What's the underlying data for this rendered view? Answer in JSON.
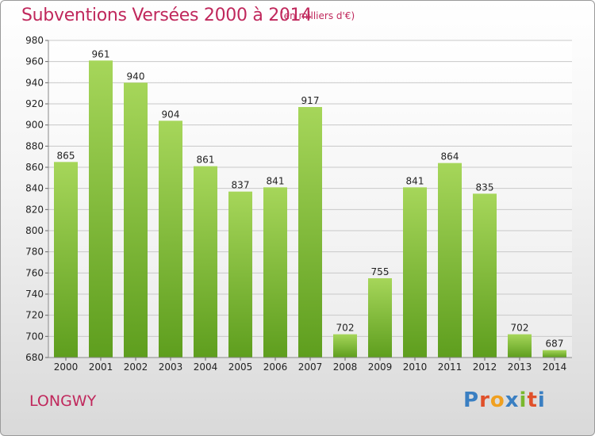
{
  "header": {
    "title": "Subventions Versées 2000 à 2014",
    "unit": "(en milliers d'€)"
  },
  "footer": {
    "city": "LONGWY",
    "logo_letters": [
      "P",
      "r",
      "o",
      "x",
      "i",
      "t",
      "i"
    ],
    "logo_colors": [
      "#3a7fc2",
      "#e0502a",
      "#f0a020",
      "#3a7fc2",
      "#7ab82e",
      "#e0502a",
      "#3a7fc2"
    ]
  },
  "colors": {
    "title": "#c0285c",
    "bar_top": "#a6d65a",
    "bar_bottom": "#5e9e1e",
    "grid": "#c8c8c8"
  },
  "chart_data": {
    "type": "bar",
    "title": "Subventions Versées 2000 à 2014",
    "subtitle": "(en milliers d'€)",
    "xlabel": "",
    "ylabel": "",
    "categories": [
      "2000",
      "2001",
      "2002",
      "2003",
      "2004",
      "2005",
      "2006",
      "2007",
      "2008",
      "2009",
      "2010",
      "2011",
      "2012",
      "2013",
      "2014"
    ],
    "values": [
      865,
      961,
      940,
      904,
      861,
      837,
      841,
      917,
      702,
      755,
      841,
      864,
      835,
      702,
      687
    ],
    "ylim": [
      680,
      980
    ],
    "yticks": [
      680,
      700,
      720,
      740,
      760,
      780,
      800,
      820,
      840,
      860,
      880,
      900,
      920,
      940,
      960,
      980
    ],
    "grid": true,
    "legend": "none"
  }
}
